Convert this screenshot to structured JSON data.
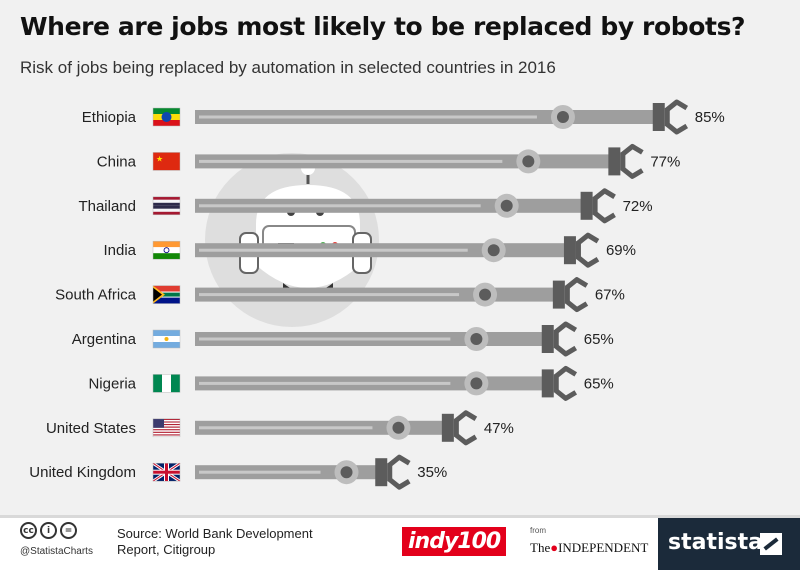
{
  "header": {
    "title": "Where are jobs most likely to be replaced by robots?",
    "subtitle": "Risk of jobs being replaced by automation in selected countries in 2016"
  },
  "chart_data": {
    "type": "bar",
    "orientation": "horizontal",
    "title": "Where are jobs most likely to be replaced by robots?",
    "subtitle": "Risk of jobs being replaced by automation in selected countries in 2016",
    "categories": [
      "Ethiopia",
      "China",
      "Thailand",
      "India",
      "South Africa",
      "Argentina",
      "Nigeria",
      "United States",
      "United Kingdom"
    ],
    "values": [
      85,
      77,
      72,
      69,
      67,
      65,
      65,
      47,
      35
    ],
    "value_labels": [
      "85%",
      "77%",
      "72%",
      "69%",
      "67%",
      "65%",
      "65%",
      "47%",
      "35%"
    ],
    "unit": "%",
    "xlim": [
      0,
      100
    ],
    "grid": false,
    "bar_color": "#9e9e9e",
    "accent_color": "#5c5c5c"
  },
  "footer": {
    "license_icons": [
      "cc-icon",
      "by-icon",
      "nd-icon"
    ],
    "license_glyphs": [
      "cc",
      "i",
      "="
    ],
    "handle": "@StatistaCharts",
    "source": "Source: World Bank Development Report, Citigroup",
    "indy_logo": "indy100",
    "from": "from",
    "independent_prefix": "The",
    "independent_name": "INDEPENDENT",
    "statista": "statista"
  }
}
